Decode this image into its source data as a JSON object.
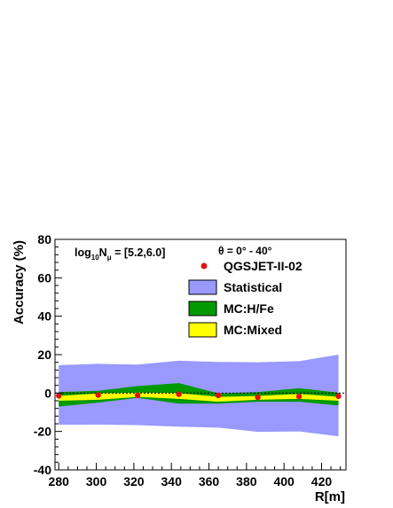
{
  "chart_data": {
    "type": "area",
    "title": "",
    "xlabel": "R[m]",
    "ylabel": "Accuracy (%)",
    "xlim": [
      278,
      433
    ],
    "ylim": [
      -40,
      80
    ],
    "xticks": [
      280,
      300,
      320,
      340,
      360,
      380,
      400,
      420
    ],
    "yticks": [
      -40,
      -20,
      0,
      20,
      40,
      60,
      80
    ],
    "grid": false,
    "legend_position": "top-right",
    "annotations": {
      "range": "log10Nμ = [5.2,6.0]",
      "range_parts": {
        "pre": "log",
        "sub1": "10",
        "mid": "N",
        "sub2": "μ",
        "post": " = [5.2,6.0]"
      },
      "theta": "θ = 0° - 40°"
    },
    "x": [
      280,
      301,
      322,
      344,
      365,
      386,
      408,
      429
    ],
    "bands": [
      {
        "name": "Statistical",
        "color": "#9999ff",
        "upper": [
          14.5,
          15.2,
          14.8,
          16.8,
          16.2,
          16.0,
          16.6,
          20.0
        ],
        "lower": [
          -16.5,
          -16.4,
          -16.7,
          -17.5,
          -18.0,
          -20.2,
          -20.0,
          -22.5
        ]
      },
      {
        "name": "MC:H/Fe",
        "color": "#009900",
        "upper": [
          0.5,
          1.2,
          3.6,
          5.2,
          -0.2,
          0.5,
          2.5,
          0.2
        ],
        "lower": [
          -7.0,
          -5.0,
          -2.5,
          -5.5,
          -5.5,
          -4.5,
          -4.5,
          -6.5
        ]
      },
      {
        "name": "MC:Mixed",
        "color": "#ffff00",
        "upper": [
          -1.5,
          -0.2,
          0.2,
          0.0,
          -2.0,
          -1.5,
          -0.5,
          -2.0
        ],
        "lower": [
          -4.0,
          -3.5,
          -2.0,
          -3.0,
          -4.5,
          -3.5,
          -3.0,
          -4.0
        ]
      }
    ],
    "series": [
      {
        "name": "QGSJET-II-02",
        "color": "#dd1111",
        "values": [
          -1.4,
          -1.0,
          -1.2,
          -0.6,
          -1.2,
          -2.2,
          -1.8,
          -1.6
        ]
      }
    ],
    "reference_line": 0
  }
}
